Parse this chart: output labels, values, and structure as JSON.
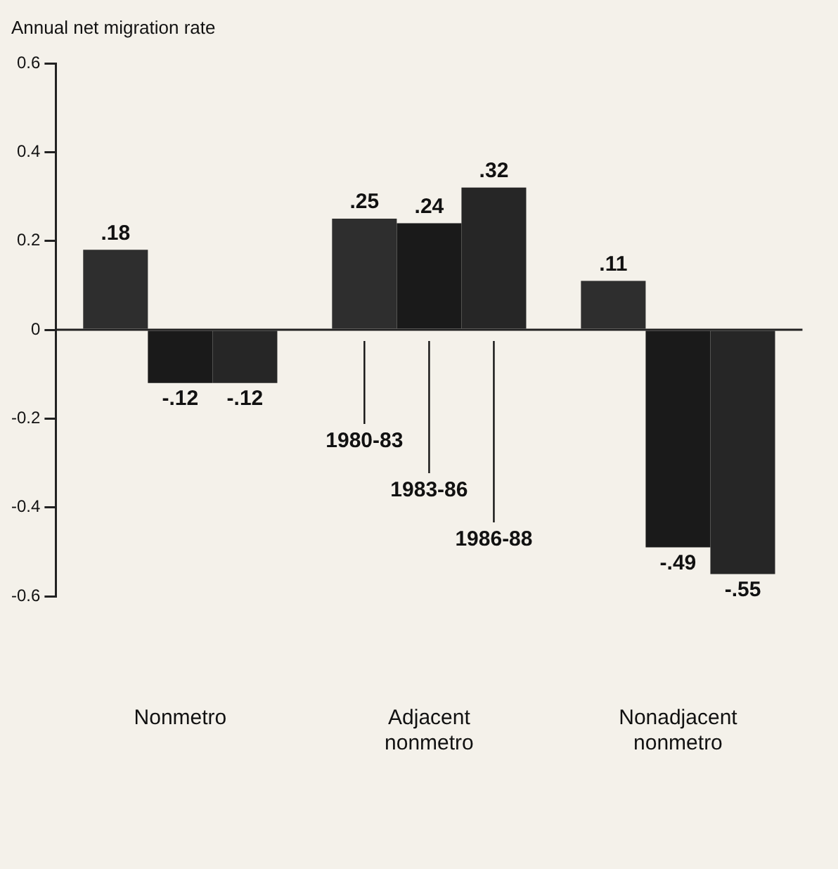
{
  "chart_data": {
    "type": "bar",
    "ylabel": "Annual net migration rate",
    "categories": [
      "Nonmetro",
      "Adjacent nonmetro",
      "Nonadjacent nonmetro"
    ],
    "series": [
      {
        "name": "1980-83",
        "color": "#2e2e2e",
        "values": [
          0.18,
          0.25,
          0.11
        ],
        "value_labels": [
          ".18",
          ".25",
          ".11"
        ]
      },
      {
        "name": "1983-86",
        "color": "#1a1a1a",
        "values": [
          -0.12,
          0.24,
          -0.49
        ],
        "value_labels": [
          "-.12",
          ".24",
          "-.49"
        ]
      },
      {
        "name": "1986-88",
        "color": "#262626",
        "values": [
          -0.12,
          0.32,
          -0.55
        ],
        "value_labels": [
          "-.12",
          ".32",
          "-.55"
        ]
      }
    ],
    "ylim": [
      -0.6,
      0.6
    ],
    "yticks": [
      -0.6,
      -0.4,
      -0.2,
      0,
      0.2,
      0.4,
      0.6
    ],
    "ref_lines": [
      {
        "axis": "y",
        "value": 0
      }
    ],
    "legend": false
  }
}
